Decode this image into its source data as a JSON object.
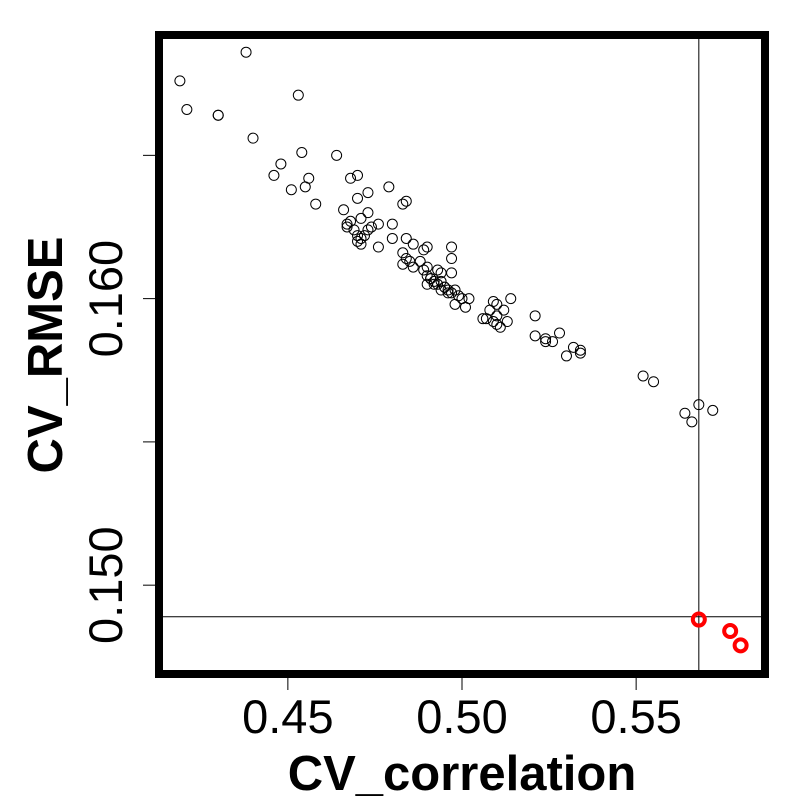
{
  "chart_data": {
    "type": "scatter",
    "xlabel": "CV_correlation",
    "ylabel": "CV_RMSE",
    "xlim": [
      0.413,
      0.587
    ],
    "ylim": [
      0.1469,
      0.1692
    ],
    "x_ticks": [
      {
        "value": 0.45,
        "label": "0.45"
      },
      {
        "value": 0.5,
        "label": "0.50"
      },
      {
        "value": 0.55,
        "label": "0.55"
      }
    ],
    "y_ticks": [
      {
        "value": 0.15,
        "label": "0.150"
      },
      {
        "value": 0.155,
        "label": ""
      },
      {
        "value": 0.16,
        "label": "0.160"
      },
      {
        "value": 0.165,
        "label": ""
      }
    ],
    "reference_lines": {
      "x": 0.568,
      "y": 0.1489
    },
    "colors": {
      "default_point": "#000000",
      "highlight_point": "#ff0000"
    },
    "series": [
      {
        "style": "hollow-circle",
        "x": [
          0.438,
          0.419,
          0.421,
          0.43,
          0.43,
          0.44,
          0.453,
          0.454,
          0.464,
          0.448,
          0.446,
          0.456,
          0.451,
          0.455,
          0.468,
          0.47,
          0.47,
          0.473,
          0.458,
          0.479,
          0.483,
          0.484,
          0.466,
          0.467,
          0.471,
          0.468,
          0.473,
          0.476,
          0.469,
          0.47,
          0.474,
          0.472,
          0.471,
          0.467,
          0.47,
          0.473,
          0.48,
          0.471,
          0.476,
          0.48,
          0.484,
          0.486,
          0.489,
          0.49,
          0.497,
          0.483,
          0.484,
          0.483,
          0.485,
          0.486,
          0.488,
          0.49,
          0.493,
          0.494,
          0.497,
          0.497,
          0.489,
          0.49,
          0.49,
          0.491,
          0.492,
          0.494,
          0.495,
          0.496,
          0.497,
          0.498,
          0.499,
          0.5,
          0.502,
          0.498,
          0.491,
          0.492,
          0.493,
          0.495,
          0.494,
          0.496,
          0.501,
          0.509,
          0.51,
          0.508,
          0.51,
          0.507,
          0.509,
          0.51,
          0.511,
          0.506,
          0.514,
          0.512,
          0.513,
          0.521,
          0.521,
          0.524,
          0.524,
          0.526,
          0.528,
          0.532,
          0.534,
          0.53,
          0.534,
          0.552,
          0.555,
          0.564,
          0.566,
          0.572,
          0.568
        ],
        "y": [
          0.1686,
          0.1676,
          0.1666,
          0.1664,
          0.1664,
          0.1656,
          0.1671,
          0.1651,
          0.165,
          0.1647,
          0.1643,
          0.1642,
          0.1638,
          0.1639,
          0.1642,
          0.1643,
          0.1635,
          0.1637,
          0.1633,
          0.1639,
          0.1633,
          0.1634,
          0.1631,
          0.1626,
          0.1628,
          0.1627,
          0.163,
          0.1626,
          0.1624,
          0.1622,
          0.1625,
          0.1622,
          0.1621,
          0.1625,
          0.162,
          0.1624,
          0.1621,
          0.1619,
          0.1618,
          0.1626,
          0.1621,
          0.1619,
          0.1617,
          0.1618,
          0.1618,
          0.1616,
          0.1614,
          0.1612,
          0.1613,
          0.1611,
          0.1613,
          0.1611,
          0.161,
          0.1609,
          0.1609,
          0.1614,
          0.161,
          0.1605,
          0.1608,
          0.1607,
          0.1605,
          0.1606,
          0.1604,
          0.1603,
          0.1602,
          0.1603,
          0.1601,
          0.16,
          0.16,
          0.1598,
          0.1607,
          0.1606,
          0.1605,
          0.1604,
          0.1603,
          0.1602,
          0.1597,
          0.1599,
          0.1598,
          0.1596,
          0.1594,
          0.1593,
          0.1592,
          0.1591,
          0.159,
          0.1593,
          0.16,
          0.1596,
          0.1592,
          0.1594,
          0.1587,
          0.1586,
          0.1585,
          0.1585,
          0.1588,
          0.1583,
          0.1582,
          0.158,
          0.1581,
          0.1573,
          0.1571,
          0.156,
          0.1557,
          0.1561,
          0.1563
        ]
      },
      {
        "style": "filled-highlight",
        "x": [
          0.568,
          0.577,
          0.58
        ],
        "y": [
          0.1488,
          0.1484,
          0.1479
        ]
      }
    ]
  }
}
